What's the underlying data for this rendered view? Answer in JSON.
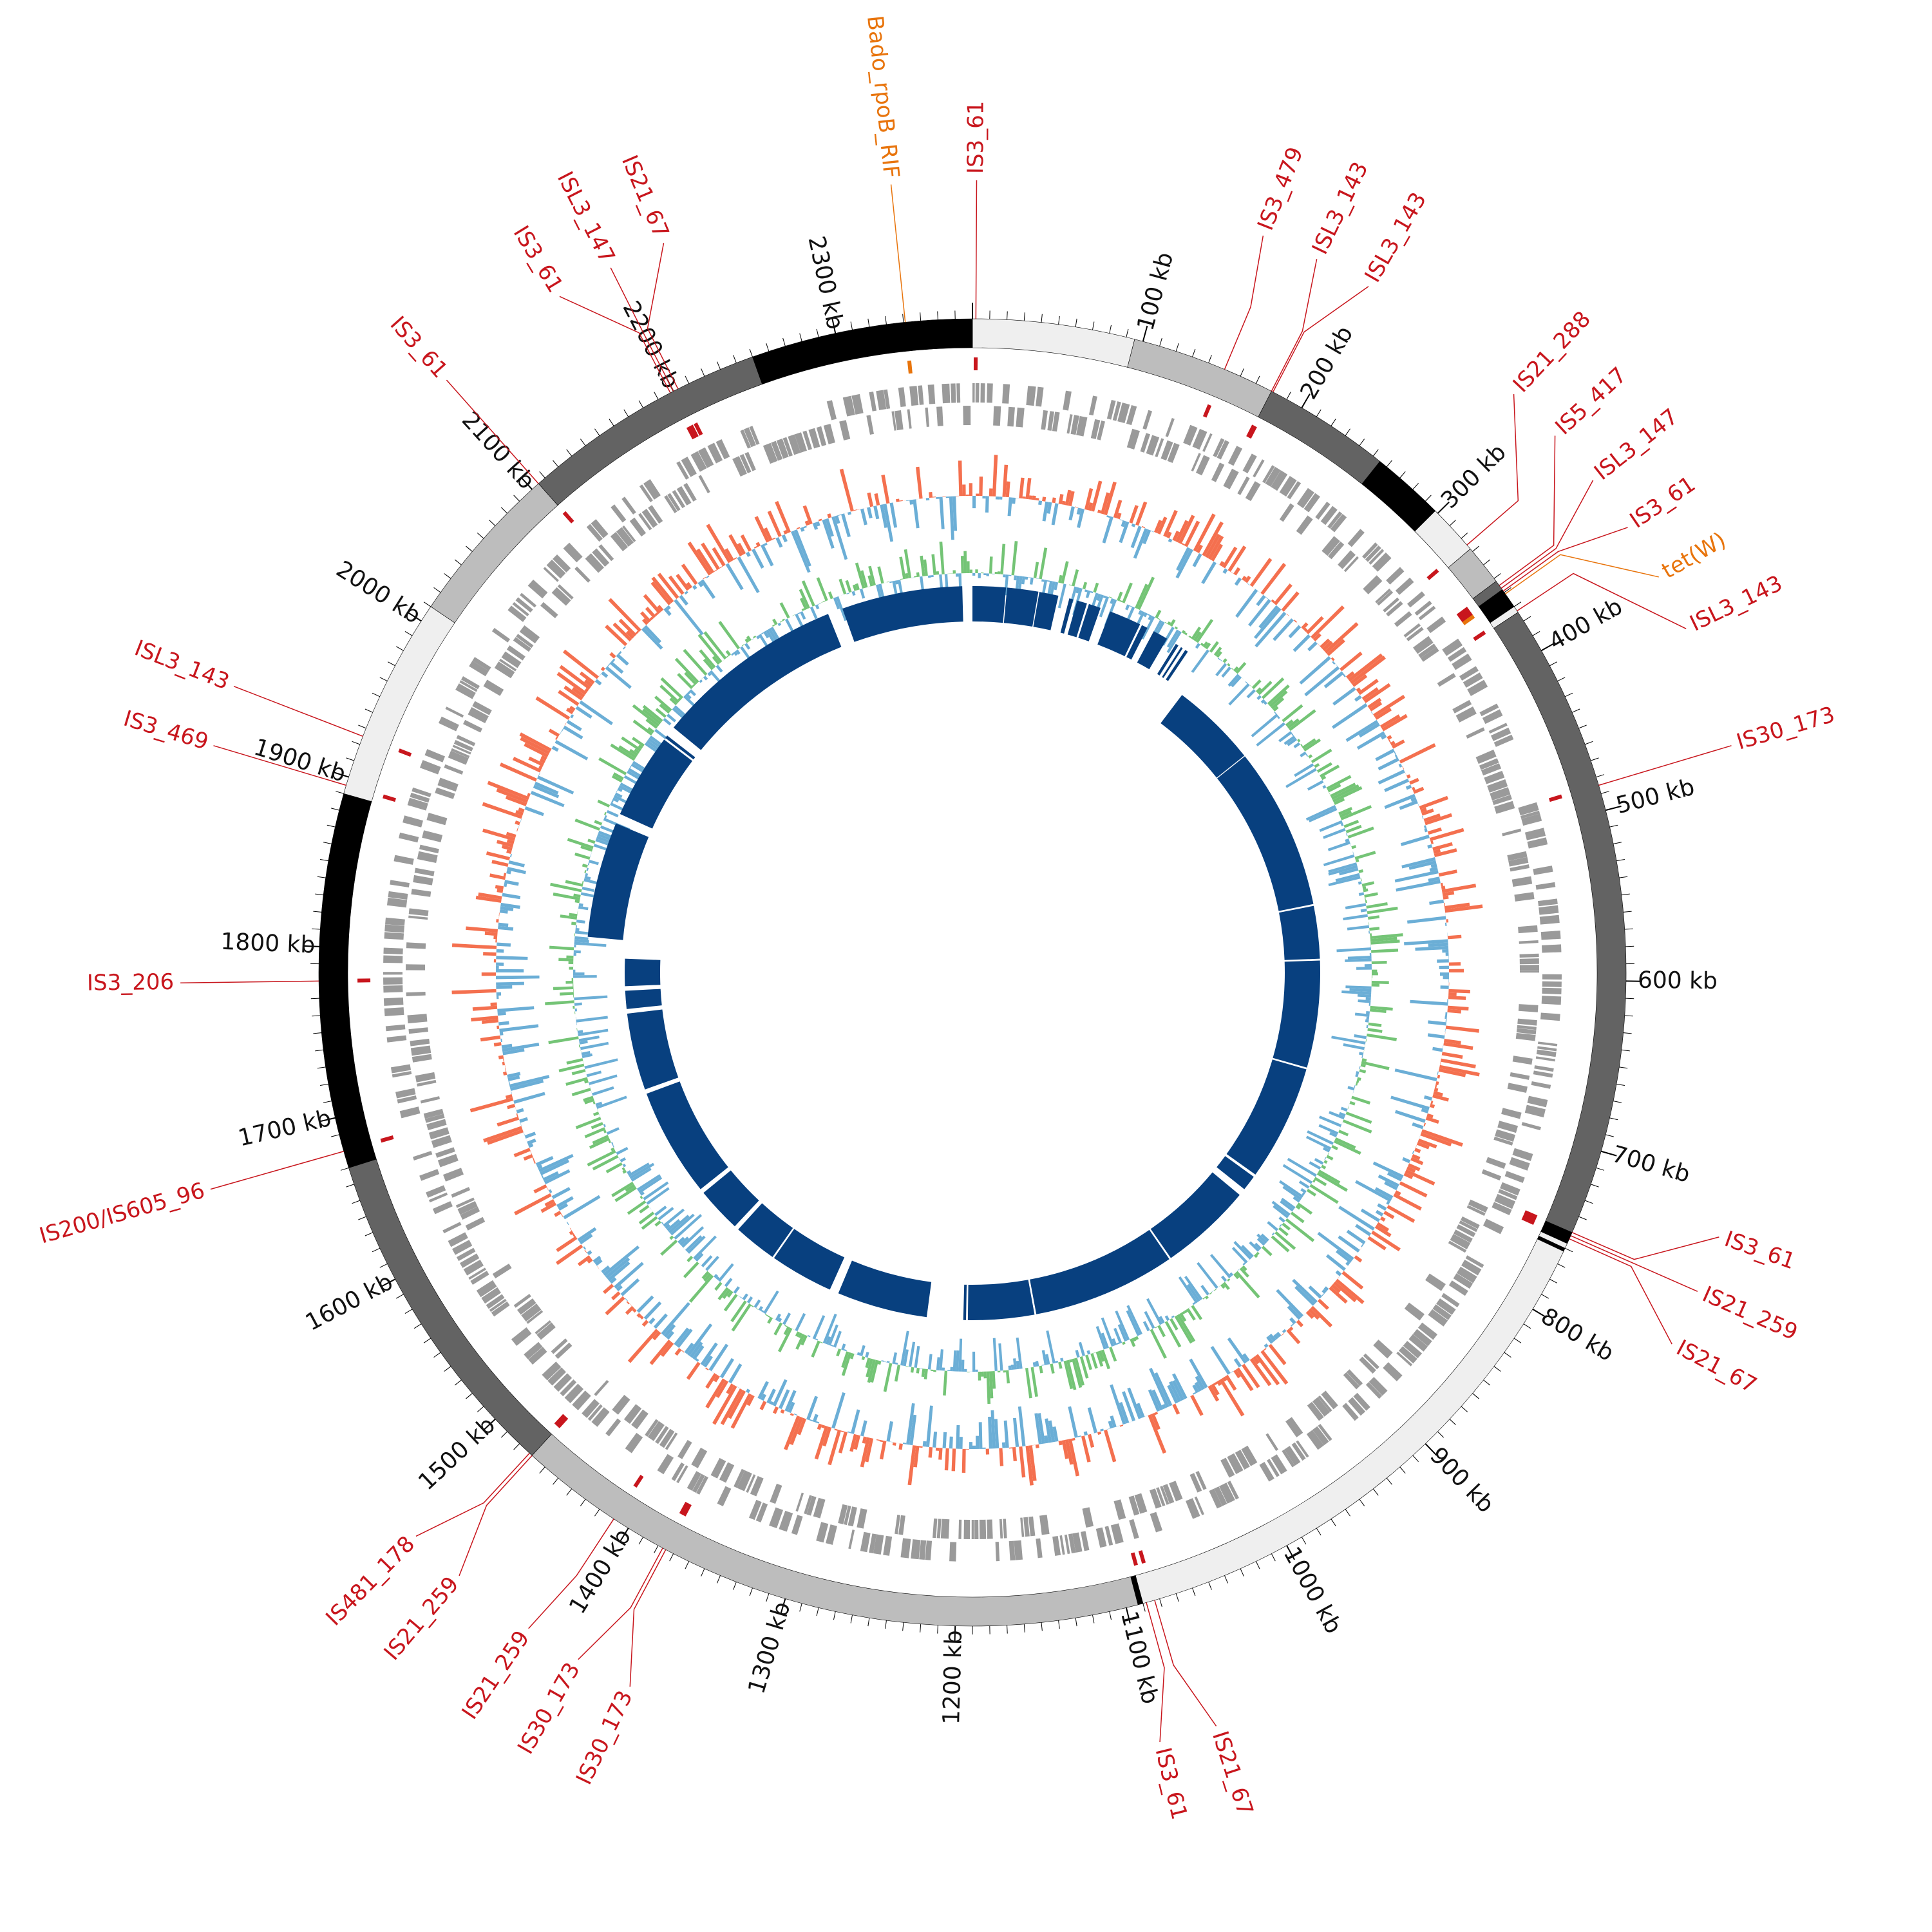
{
  "genome": {
    "total_kb": 2380,
    "tick_step_kb": 100,
    "tick_labels": [
      "100 kb",
      "200 kb",
      "300 kb",
      "400 kb",
      "500 kb",
      "600 kb",
      "700 kb",
      "800 kb",
      "900 kb",
      "1000 kb",
      "1100 kb",
      "1200 kb",
      "1300 kb",
      "1400 kb",
      "1500 kb",
      "1600 kb",
      "1700 kb",
      "1800 kb",
      "1900 kb",
      "2000 kb",
      "2100 kb",
      "2200 kb",
      "2300 kb"
    ]
  },
  "colors": {
    "is_element": "#c8161d",
    "resistance": "#e8740c",
    "gene_gray": "#9a9a9a",
    "gc_skew_pos": "#f4704f",
    "gc_skew_neg": "#6baed6",
    "gc_content_pos": "#74c476",
    "gc_content_neg": "#6baed6",
    "synteny_blue": "#08407f"
  },
  "contig_ring": [
    {
      "start": 0,
      "end": 95,
      "shade": "#efefef"
    },
    {
      "start": 95,
      "end": 180,
      "shade": "#bdbdbd"
    },
    {
      "start": 180,
      "end": 255,
      "shade": "#636363"
    },
    {
      "start": 255,
      "end": 298,
      "shade": "#000000"
    },
    {
      "start": 298,
      "end": 328,
      "shade": "#efefef"
    },
    {
      "start": 328,
      "end": 352,
      "shade": "#bdbdbd"
    },
    {
      "start": 352,
      "end": 358,
      "shade": "#636363"
    },
    {
      "start": 358,
      "end": 370,
      "shade": "#000000"
    },
    {
      "start": 370,
      "end": 374,
      "shade": "#efefef"
    },
    {
      "start": 374,
      "end": 750,
      "shade": "#636363"
    },
    {
      "start": 750,
      "end": 757,
      "shade": "#000000"
    },
    {
      "start": 757,
      "end": 760,
      "shade": "#efefef"
    },
    {
      "start": 760,
      "end": 762,
      "shade": "#000000"
    },
    {
      "start": 762,
      "end": 1090,
      "shade": "#efefef"
    },
    {
      "start": 1090,
      "end": 1093,
      "shade": "#000000"
    },
    {
      "start": 1093,
      "end": 1470,
      "shade": "#bdbdbd"
    },
    {
      "start": 1470,
      "end": 1670,
      "shade": "#636363"
    },
    {
      "start": 1670,
      "end": 1890,
      "shade": "#000000"
    },
    {
      "start": 1890,
      "end": 2010,
      "shade": "#efefef"
    },
    {
      "start": 2010,
      "end": 2105,
      "shade": "#bdbdbd"
    },
    {
      "start": 2105,
      "end": 2250,
      "shade": "#636363"
    },
    {
      "start": 2250,
      "end": 2380,
      "shade": "#000000"
    }
  ],
  "annotations": [
    {
      "label": "IS3_61",
      "pos": 2,
      "kind": "is"
    },
    {
      "label": "IS3_479",
      "pos": 150,
      "kind": "is"
    },
    {
      "label": "ISL3_143",
      "pos": 180,
      "kind": "is"
    },
    {
      "label": "ISL3_143",
      "pos": 181,
      "kind": "is"
    },
    {
      "label": "IS21_288",
      "pos": 325,
      "kind": "is"
    },
    {
      "label": "IS5_417",
      "pos": 355,
      "kind": "is"
    },
    {
      "label": "ISL3_147",
      "pos": 357,
      "kind": "is"
    },
    {
      "label": "IS3_61",
      "pos": 359,
      "kind": "is"
    },
    {
      "label": "tet(W)",
      "pos": 361,
      "kind": "res"
    },
    {
      "label": "ISL3_143",
      "pos": 373,
      "kind": "is"
    },
    {
      "label": "IS30_173",
      "pos": 485,
      "kind": "is"
    },
    {
      "label": "IS3_61",
      "pos": 750,
      "kind": "is"
    },
    {
      "label": "IS21_259",
      "pos": 752,
      "kind": "is"
    },
    {
      "label": "IS21_67",
      "pos": 754,
      "kind": "is"
    },
    {
      "label": "IS3_61",
      "pos": 1088,
      "kind": "is"
    },
    {
      "label": "IS21_67",
      "pos": 1083,
      "kind": "is"
    },
    {
      "label": "IS30_173",
      "pos": 1375,
      "kind": "is"
    },
    {
      "label": "IS30_173",
      "pos": 1377,
      "kind": "is"
    },
    {
      "label": "IS21_259",
      "pos": 1410,
      "kind": "is"
    },
    {
      "label": "IS21_259",
      "pos": 1470,
      "kind": "is"
    },
    {
      "label": "IS481_178",
      "pos": 1472,
      "kind": "is"
    },
    {
      "label": "IS200/IS605_96",
      "pos": 1680,
      "kind": "is"
    },
    {
      "label": "IS3_206",
      "pos": 1780,
      "kind": "is"
    },
    {
      "label": "IS3_469",
      "pos": 1895,
      "kind": "is"
    },
    {
      "label": "ISL3_143",
      "pos": 1925,
      "kind": "is"
    },
    {
      "label": "IS3_61",
      "pos": 2105,
      "kind": "is"
    },
    {
      "label": "IS3_61",
      "pos": 2198,
      "kind": "is"
    },
    {
      "label": "ISL3_147",
      "pos": 2200,
      "kind": "is"
    },
    {
      "label": "IS21_67",
      "pos": 2203,
      "kind": "is"
    },
    {
      "label": "Bado_rpoB_RIF",
      "pos": 2341,
      "kind": "res"
    }
  ],
  "synteny_blocks": [
    {
      "start": 0,
      "end": 33
    },
    {
      "start": 34,
      "end": 65
    },
    {
      "start": 66,
      "end": 85
    },
    {
      "start": 96,
      "end": 100
    },
    {
      "start": 104,
      "end": 114
    },
    {
      "start": 116,
      "end": 128
    },
    {
      "start": 138,
      "end": 170
    },
    {
      "start": 172,
      "end": 178
    },
    {
      "start": 185,
      "end": 200
    },
    {
      "start": 210,
      "end": 213
    },
    {
      "start": 216,
      "end": 218
    },
    {
      "start": 221,
      "end": 224
    },
    {
      "start": 245,
      "end": 340
    },
    {
      "start": 341,
      "end": 520
    },
    {
      "start": 522,
      "end": 580
    },
    {
      "start": 582,
      "end": 700
    },
    {
      "start": 702,
      "end": 830
    },
    {
      "start": 833,
      "end": 850
    },
    {
      "start": 858,
      "end": 960
    },
    {
      "start": 962,
      "end": 1120
    },
    {
      "start": 1122,
      "end": 1195
    },
    {
      "start": 1197,
      "end": 1200
    },
    {
      "start": 1240,
      "end": 1340
    },
    {
      "start": 1350,
      "end": 1420
    },
    {
      "start": 1422,
      "end": 1470
    },
    {
      "start": 1475,
      "end": 1525
    },
    {
      "start": 1530,
      "end": 1650
    },
    {
      "start": 1655,
      "end": 1740
    },
    {
      "start": 1745,
      "end": 1765
    },
    {
      "start": 1770,
      "end": 1800
    },
    {
      "start": 1820,
      "end": 1935
    },
    {
      "start": 1945,
      "end": 2030
    },
    {
      "start": 2032,
      "end": 2035
    },
    {
      "start": 2045,
      "end": 2235
    },
    {
      "start": 2250,
      "end": 2370
    }
  ]
}
